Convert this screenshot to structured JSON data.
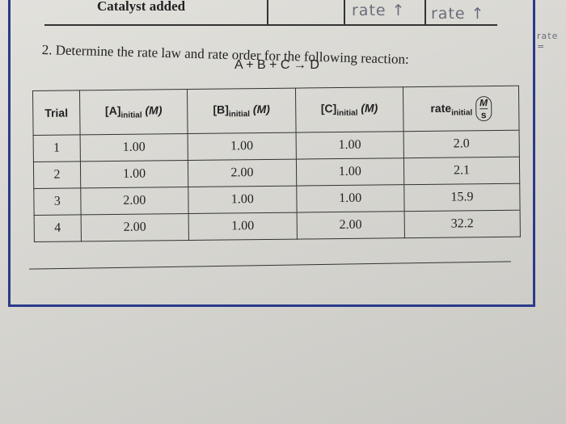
{
  "header": {
    "label": "Catalyst added",
    "handwriting": [
      "rate ↑",
      "rate ↑"
    ],
    "margin_note": "rate ="
  },
  "question": {
    "text": "2. Determine the rate law and rate order for the following reaction:",
    "reaction": "A + B + C → D"
  },
  "table": {
    "headers": [
      {
        "main": "Trial"
      },
      {
        "main": "[A]",
        "sub": "initial",
        "unit": "(M)"
      },
      {
        "main": "[B]",
        "sub": "initial",
        "unit": "(M)"
      },
      {
        "main": "[C]",
        "sub": "initial",
        "unit": "(M)"
      },
      {
        "main": "rate",
        "sub": "initial",
        "num": "M",
        "den": "s"
      }
    ],
    "rows": [
      [
        1,
        "1.00",
        "1.00",
        "1.00",
        "2.0"
      ],
      [
        2,
        "1.00",
        "2.00",
        "1.00",
        "2.1"
      ],
      [
        3,
        "2.00",
        "1.00",
        "1.00",
        "15.9"
      ],
      [
        4,
        "2.00",
        "1.00",
        "2.00",
        "32.2"
      ]
    ]
  }
}
